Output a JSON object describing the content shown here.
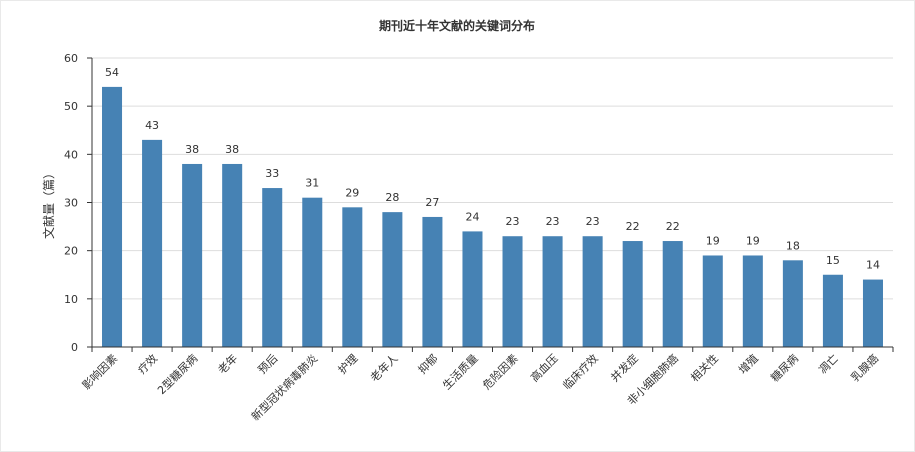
{
  "chart_data": {
    "type": "bar",
    "title": "期刊近十年文献的关键词分布",
    "xlabel": "",
    "ylabel": "文献量（篇）",
    "ylim": [
      0,
      60
    ],
    "yticks": [
      0,
      10,
      20,
      30,
      40,
      50,
      60
    ],
    "grid": true,
    "bar_color": "#4682b4",
    "categories": [
      "影响因素",
      "疗效",
      "2型糖尿病",
      "老年",
      "预后",
      "新型冠状病毒肺炎",
      "护理",
      "老年人",
      "抑郁",
      "生活质量",
      "危险因素",
      "高血压",
      "临床疗效",
      "并发症",
      "非小细胞肺癌",
      "相关性",
      "增殖",
      "糖尿病",
      "凋亡",
      "乳腺癌"
    ],
    "values": [
      54,
      43,
      38,
      38,
      33,
      31,
      29,
      28,
      27,
      24,
      23,
      23,
      23,
      22,
      22,
      19,
      19,
      18,
      15,
      14
    ]
  }
}
